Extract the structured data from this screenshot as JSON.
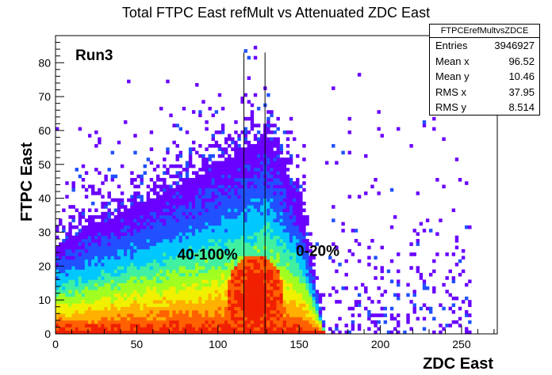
{
  "chart_data": {
    "type": "heatmap",
    "title": "Total FTPC East refMult vs Attenuated  ZDC East",
    "xlabel": "ZDC East",
    "ylabel": "FTPC East",
    "xlim": [
      0,
      272
    ],
    "ylim": [
      0,
      88
    ],
    "xticks": [
      0,
      50,
      100,
      150,
      200,
      250
    ],
    "yticks": [
      0,
      10,
      20,
      30,
      40,
      50,
      60,
      70,
      80
    ],
    "colormap": [
      "#6a00ff",
      "#2050ff",
      "#00c8ff",
      "#40f0a0",
      "#a0ff20",
      "#f0f000",
      "#ffb000",
      "#ff6000",
      "#f02000"
    ],
    "grid": false,
    "run_label": "Run3",
    "centrality_cuts": [
      116,
      129
    ],
    "region_labels": [
      {
        "text": "40-100%",
        "x": 75,
        "y": 22
      },
      {
        "text": "0-20%",
        "x": 148,
        "y": 23
      }
    ],
    "stats": {
      "name": "FTPCErefMultvsZDCE",
      "entries": {
        "label": "Entries",
        "value": "3946927"
      },
      "mean_x": {
        "label": "Mean x",
        "value": "96.52"
      },
      "mean_y": {
        "label": "Mean y",
        "value": "10.46"
      },
      "rms_x": {
        "label": "RMS x",
        "value": "37.95"
      },
      "rms_y": {
        "label": "RMS y",
        "value": "8.514"
      }
    }
  }
}
